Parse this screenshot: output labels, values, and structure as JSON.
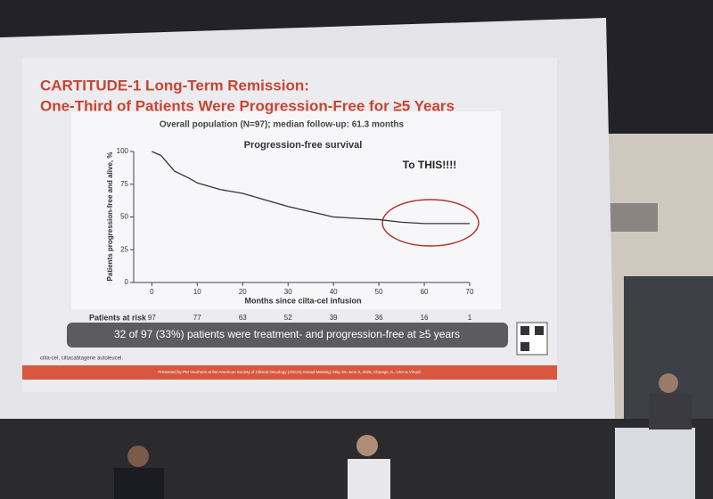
{
  "slide": {
    "title_line1": "CARTITUDE-1 Long-Term Remission:",
    "title_line2": "One-Third of Patients Were Progression-Free for ≥5 Years",
    "banner": "32 of 97 (33%) patients were treatment- and progression-free at ≥5 years",
    "footnote": "cilta-cel, ciltacabtagene autoleucel.",
    "footer": "Presented by PM Voorhees at the American Society of Clinical Oncology (ASCO) Annual Meeting; May 30–June 3, 2025; Chicago, IL, USA & Virtual."
  },
  "chart_data": {
    "type": "line",
    "title": "Overall population (N=97); median follow-up: 61.3 months",
    "subtitle": "Progression-free survival",
    "annotation": "To THIS!!!!",
    "x_label": "Months since cilta-cel infusion",
    "y_label": "Patients progression-free and alive, %",
    "x": [
      0,
      2,
      5,
      8,
      10,
      15,
      20,
      25,
      30,
      35,
      40,
      45,
      50,
      55,
      60,
      65,
      70
    ],
    "series": [
      {
        "name": "Progression-free survival",
        "color": "#333333",
        "values": [
          100,
          97,
          85,
          80,
          76,
          71,
          68,
          63,
          58,
          54,
          50,
          49,
          48,
          46,
          45,
          45,
          45
        ]
      }
    ],
    "xlim": [
      -4,
      70
    ],
    "xticks": [
      0,
      10,
      20,
      30,
      40,
      50,
      60,
      70
    ],
    "ylim": [
      0,
      100
    ],
    "yticks": [
      0,
      25,
      50,
      75,
      100
    ],
    "at_risk_label": "Patients at risk",
    "at_risk": [
      97,
      77,
      63,
      52,
      39,
      36,
      16,
      1
    ]
  }
}
